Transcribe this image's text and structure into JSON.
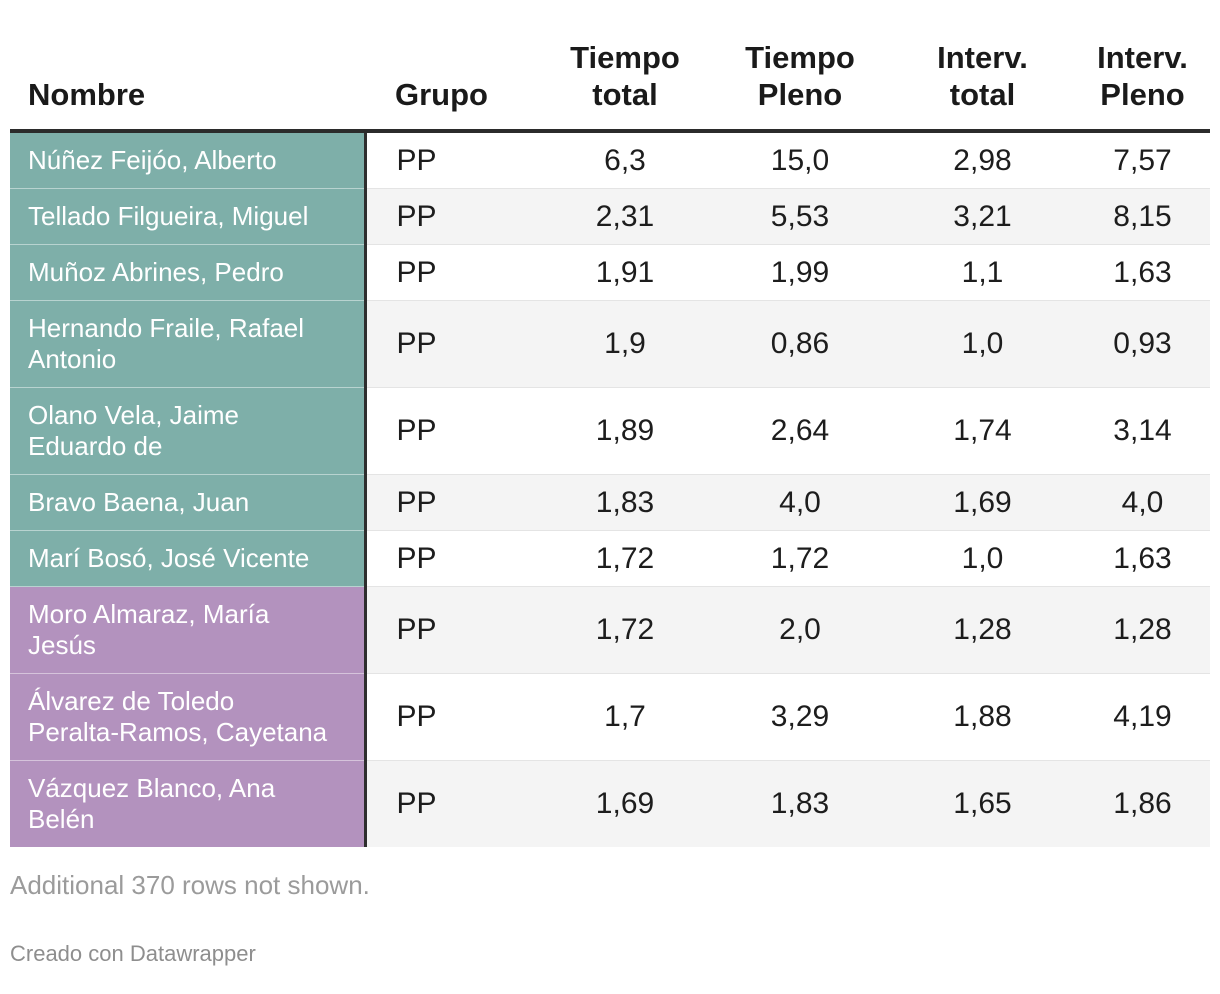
{
  "colors": {
    "teal": "#7eafa9",
    "purple": "#b392be",
    "header_rule": "#2b2b2b",
    "stripe": "#f4f4f4"
  },
  "chart_data": {
    "type": "table",
    "columns": [
      "Nombre",
      "Grupo",
      "Tiempo\ntotal",
      "Tiempo\nPleno",
      "Interv.\ntotal",
      "Interv.\nPleno"
    ],
    "rows": [
      {
        "nombre": "Núñez Feijóo, Alberto",
        "grupo": "PP",
        "tiempo_total": "6,3",
        "tiempo_pleno": "15,0",
        "interv_total": "2,98",
        "interv_pleno": "7,57",
        "nombre_color": "teal"
      },
      {
        "nombre": "Tellado Filgueira, Miguel",
        "grupo": "PP",
        "tiempo_total": "2,31",
        "tiempo_pleno": "5,53",
        "interv_total": "3,21",
        "interv_pleno": "8,15",
        "nombre_color": "teal"
      },
      {
        "nombre": "Muñoz Abrines, Pedro",
        "grupo": "PP",
        "tiempo_total": "1,91",
        "tiempo_pleno": "1,99",
        "interv_total": "1,1",
        "interv_pleno": "1,63",
        "nombre_color": "teal"
      },
      {
        "nombre": "Hernando Fraile, Rafael Antonio",
        "grupo": "PP",
        "tiempo_total": "1,9",
        "tiempo_pleno": "0,86",
        "interv_total": "1,0",
        "interv_pleno": "0,93",
        "nombre_color": "teal"
      },
      {
        "nombre": "Olano Vela, Jaime Eduardo de",
        "grupo": "PP",
        "tiempo_total": "1,89",
        "tiempo_pleno": "2,64",
        "interv_total": "1,74",
        "interv_pleno": "3,14",
        "nombre_color": "teal"
      },
      {
        "nombre": "Bravo Baena, Juan",
        "grupo": "PP",
        "tiempo_total": "1,83",
        "tiempo_pleno": "4,0",
        "interv_total": "1,69",
        "interv_pleno": "4,0",
        "nombre_color": "teal"
      },
      {
        "nombre": "Marí Bosó, José Vicente",
        "grupo": "PP",
        "tiempo_total": "1,72",
        "tiempo_pleno": "1,72",
        "interv_total": "1,0",
        "interv_pleno": "1,63",
        "nombre_color": "teal"
      },
      {
        "nombre": "Moro Almaraz, María Jesús",
        "grupo": "PP",
        "tiempo_total": "1,72",
        "tiempo_pleno": "2,0",
        "interv_total": "1,28",
        "interv_pleno": "1,28",
        "nombre_color": "purple"
      },
      {
        "nombre": "Álvarez de Toledo Peralta-Ramos, Cayetana",
        "grupo": "PP",
        "tiempo_total": "1,7",
        "tiempo_pleno": "3,29",
        "interv_total": "1,88",
        "interv_pleno": "4,19",
        "nombre_color": "purple"
      },
      {
        "nombre": "Vázquez Blanco, Ana Belén",
        "grupo": "PP",
        "tiempo_total": "1,69",
        "tiempo_pleno": "1,83",
        "interv_total": "1,65",
        "interv_pleno": "1,86",
        "nombre_color": "purple"
      }
    ],
    "series": [
      {
        "name": "Tiempo total",
        "values": [
          6.3,
          2.31,
          1.91,
          1.9,
          1.89,
          1.83,
          1.72,
          1.72,
          1.7,
          1.69
        ]
      },
      {
        "name": "Tiempo Pleno",
        "values": [
          15.0,
          5.53,
          1.99,
          0.86,
          2.64,
          4.0,
          1.72,
          2.0,
          3.29,
          1.83
        ]
      },
      {
        "name": "Interv. total",
        "values": [
          2.98,
          3.21,
          1.1,
          1.0,
          1.74,
          1.69,
          1.0,
          1.28,
          1.88,
          1.65
        ]
      },
      {
        "name": "Interv. Pleno",
        "values": [
          7.57,
          8.15,
          1.63,
          0.93,
          3.14,
          4.0,
          1.63,
          1.28,
          4.19,
          1.86
        ]
      }
    ],
    "legend_position": "none",
    "grid": "row-stripes"
  },
  "footer": {
    "note": "Additional 370 rows not shown.",
    "credit": "Creado con Datawrapper"
  }
}
